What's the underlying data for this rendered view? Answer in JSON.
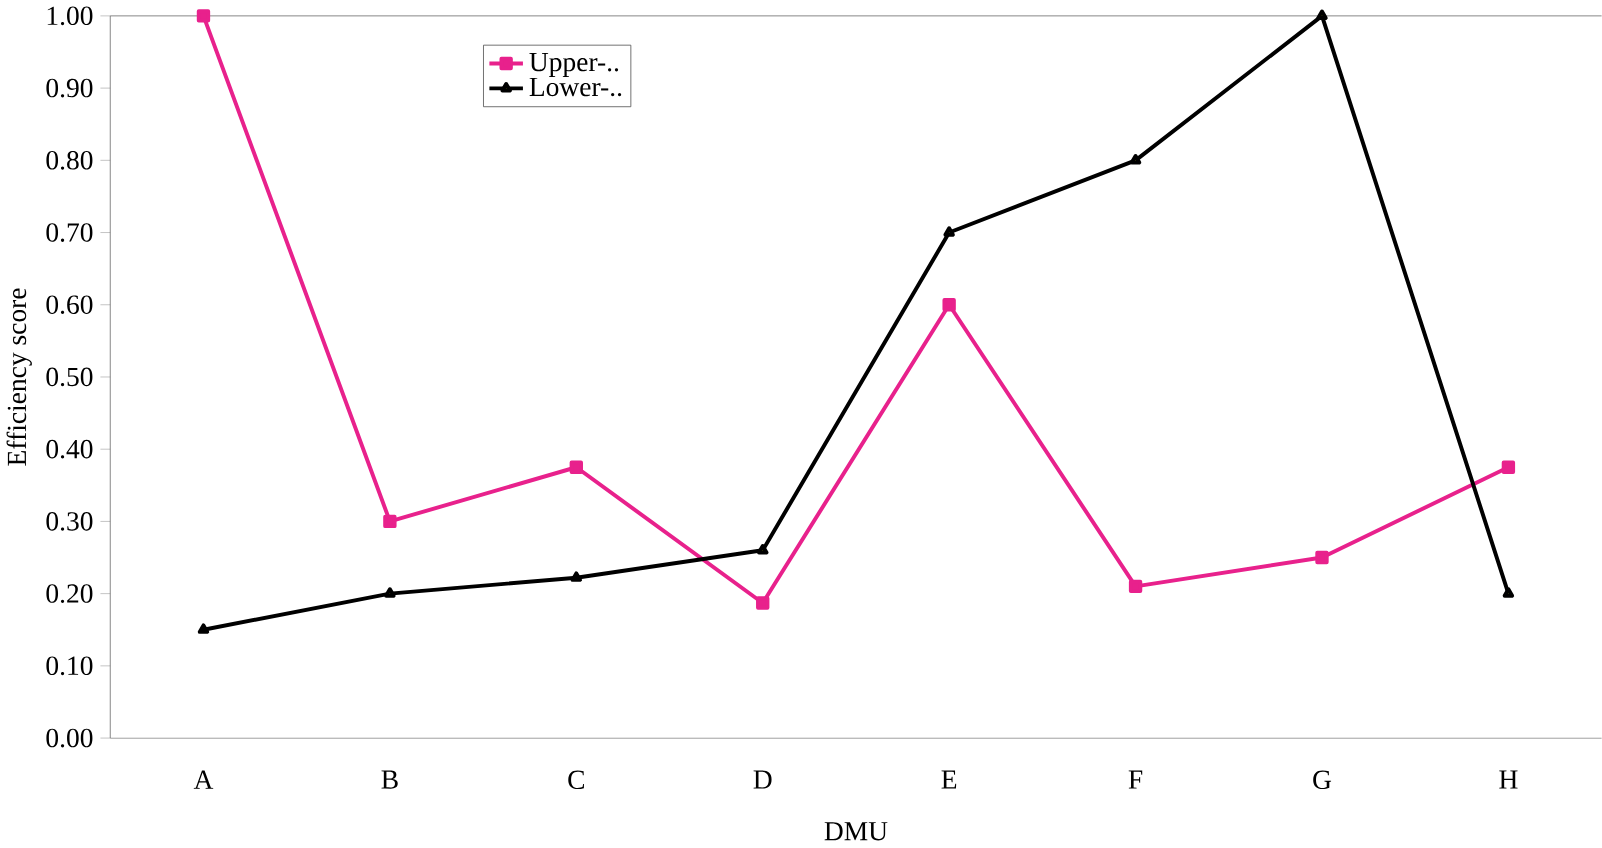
{
  "chart_data": {
    "type": "line",
    "xlabel": "DMU",
    "ylabel": "Efficiency score",
    "categories": [
      "A",
      "B",
      "C",
      "D",
      "E",
      "F",
      "G",
      "H"
    ],
    "series": [
      {
        "name": "Upper-..",
        "color": "#e8218c",
        "marker": "square",
        "values": [
          1.0,
          0.3,
          0.375,
          0.187,
          0.6,
          0.21,
          0.25,
          0.375
        ]
      },
      {
        "name": "Lower-..",
        "color": "#000000",
        "marker": "triangle",
        "values": [
          0.15,
          0.2,
          0.222,
          0.26,
          0.7,
          0.8,
          1.0,
          0.2
        ]
      }
    ],
    "ylim": [
      0,
      1
    ],
    "yticks": [
      {
        "value": 0,
        "label": "0.00"
      },
      {
        "value": 0.1,
        "label": "0.10"
      },
      {
        "value": 0.2,
        "label": "0.20"
      },
      {
        "value": 0.3,
        "label": "0.30"
      },
      {
        "value": 0.4,
        "label": "0.40"
      },
      {
        "value": 0.5,
        "label": "0.50"
      },
      {
        "value": 0.6,
        "label": "0.60"
      },
      {
        "value": 0.7,
        "label": "0.70"
      },
      {
        "value": 0.8,
        "label": "0.80"
      },
      {
        "value": 0.9,
        "label": "0.90"
      },
      {
        "value": 1,
        "label": "1.00"
      }
    ],
    "grid": false,
    "legend": "top left",
    "line_style": "solid"
  }
}
